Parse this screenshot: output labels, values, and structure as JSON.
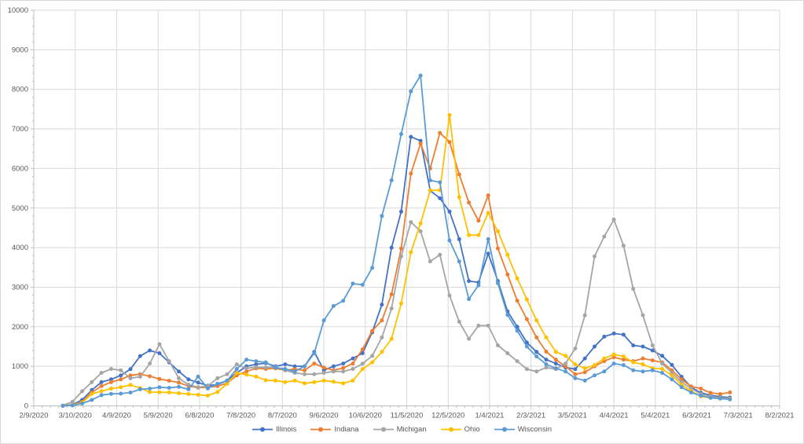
{
  "chart_data": {
    "type": "line",
    "title": "",
    "xlabel": "",
    "ylabel": "",
    "ylim": [
      0,
      10000
    ],
    "y_major_unit": 1000,
    "y_minor_per_major": 5,
    "x_minor_per_major": 5,
    "grid": "both",
    "legend_position": "bottom",
    "x_axis_origin": "2/9/2020",
    "x_axis_ticks": [
      "2/9/2020",
      "3/10/2020",
      "4/9/2020",
      "5/9/2020",
      "6/8/2020",
      "7/8/2020",
      "8/7/2020",
      "9/6/2020",
      "10/6/2020",
      "11/5/2020",
      "12/5/2020",
      "1/4/2021",
      "2/3/2021",
      "3/5/2021",
      "4/4/2021",
      "5/4/2021",
      "6/3/2021",
      "7/3/2021",
      "8/2/2021"
    ],
    "y_axis_ticks": [
      "0",
      "1000",
      "2000",
      "3000",
      "4000",
      "5000",
      "6000",
      "7000",
      "8000",
      "9000",
      "10000"
    ],
    "x": [
      "3/1/2020",
      "3/8/2020",
      "3/15/2020",
      "3/22/2020",
      "3/29/2020",
      "4/5/2020",
      "4/12/2020",
      "4/19/2020",
      "4/26/2020",
      "5/3/2020",
      "5/10/2020",
      "5/17/2020",
      "5/24/2020",
      "5/31/2020",
      "6/7/2020",
      "6/14/2020",
      "6/21/2020",
      "6/28/2020",
      "7/5/2020",
      "7/12/2020",
      "7/19/2020",
      "7/26/2020",
      "8/2/2020",
      "8/9/2020",
      "8/16/2020",
      "8/23/2020",
      "8/30/2020",
      "9/6/2020",
      "9/13/2020",
      "9/20/2020",
      "9/27/2020",
      "10/4/2020",
      "10/11/2020",
      "10/18/2020",
      "10/25/2020",
      "11/1/2020",
      "11/8/2020",
      "11/15/2020",
      "11/22/2020",
      "11/29/2020",
      "12/6/2020",
      "12/13/2020",
      "12/20/2020",
      "12/27/2020",
      "1/3/2021",
      "1/10/2021",
      "1/17/2021",
      "1/24/2021",
      "1/31/2021",
      "2/7/2021",
      "2/14/2021",
      "2/21/2021",
      "2/28/2021",
      "3/7/2021",
      "3/14/2021",
      "3/21/2021",
      "3/28/2021",
      "4/4/2021",
      "4/11/2021",
      "4/18/2021",
      "4/25/2021",
      "5/2/2021",
      "5/9/2021",
      "5/16/2021",
      "5/23/2021",
      "5/30/2021",
      "6/6/2021",
      "6/13/2021",
      "6/20/2021",
      "6/27/2021"
    ],
    "series": [
      {
        "name": "Illinois",
        "color": "#4472C4",
        "values": [
          5,
          30,
          150,
          400,
          600,
          670,
          770,
          930,
          1260,
          1400,
          1330,
          1100,
          870,
          670,
          590,
          510,
          540,
          640,
          835,
          1000,
          1050,
          1080,
          1000,
          1050,
          1000,
          1000,
          1365,
          900,
          1000,
          1070,
          1200,
          1330,
          1860,
          2560,
          4000,
          4910,
          6800,
          6700,
          5440,
          5250,
          4910,
          4215,
          3155,
          3120,
          3850,
          3155,
          2390,
          2000,
          1600,
          1365,
          1170,
          1070,
          970,
          930,
          1200,
          1500,
          1750,
          1830,
          1800,
          1530,
          1500,
          1400,
          1266,
          1034,
          736,
          471,
          330,
          270,
          230,
          210
        ]
      },
      {
        "name": "Indiana",
        "color": "#ED7D31",
        "values": [
          0,
          20,
          100,
          340,
          500,
          600,
          670,
          770,
          800,
          750,
          680,
          636,
          590,
          500,
          460,
          470,
          500,
          570,
          770,
          870,
          950,
          934,
          950,
          900,
          930,
          900,
          1070,
          970,
          900,
          960,
          1070,
          1430,
          1895,
          2160,
          2820,
          3980,
          5870,
          6630,
          6000,
          6900,
          6670,
          5850,
          5140,
          4680,
          5320,
          3980,
          3320,
          2660,
          2190,
          1730,
          1370,
          1170,
          1000,
          800,
          850,
          1000,
          1130,
          1230,
          1170,
          1130,
          1200,
          1150,
          1100,
          900,
          670,
          490,
          437,
          330,
          300,
          340
        ]
      },
      {
        "name": "Michigan",
        "color": "#A5A5A5",
        "values": [
          10,
          105,
          370,
          600,
          835,
          934,
          900,
          700,
          736,
          1070,
          1560,
          1130,
          700,
          537,
          471,
          503,
          700,
          800,
          1050,
          950,
          980,
          970,
          980,
          900,
          835,
          800,
          800,
          835,
          870,
          870,
          934,
          1067,
          1266,
          1730,
          2460,
          3780,
          4645,
          4413,
          3652,
          3817,
          2790,
          2127,
          1696,
          2028,
          2028,
          1530,
          1330,
          1130,
          930,
          870,
          970,
          930,
          1070,
          1450,
          2290,
          3780,
          4280,
          4710,
          4050,
          2960,
          2290,
          1530,
          1070,
          835,
          600,
          437,
          300,
          240,
          200,
          185
        ]
      },
      {
        "name": "Ohio",
        "color": "#FFC000",
        "values": [
          0,
          15,
          80,
          304,
          372,
          437,
          471,
          530,
          450,
          350,
          345,
          340,
          320,
          300,
          280,
          260,
          350,
          560,
          830,
          790,
          740,
          650,
          640,
          600,
          640,
          570,
          600,
          640,
          610,
          570,
          640,
          930,
          1100,
          1365,
          1696,
          2590,
          3883,
          4612,
          5450,
          5450,
          7350,
          5275,
          4315,
          4315,
          4877,
          4413,
          3817,
          3221,
          2690,
          2160,
          1730,
          1365,
          1266,
          1050,
          950,
          1030,
          1200,
          1300,
          1250,
          1100,
          1050,
          950,
          934,
          770,
          537,
          372,
          240,
          200,
          185,
          175
        ]
      },
      {
        "name": "Wisconsin",
        "color": "#5B9BD5",
        "values": [
          0,
          10,
          60,
          150,
          272,
          304,
          310,
          338,
          420,
          437,
          471,
          457,
          483,
          420,
          740,
          440,
          560,
          640,
          934,
          1170,
          1130,
          1100,
          968,
          934,
          870,
          1000,
          1330,
          2160,
          2525,
          2657,
          3090,
          3060,
          3490,
          4800,
          5700,
          6870,
          7950,
          8350,
          5700,
          5650,
          4180,
          3650,
          2700,
          3050,
          4215,
          3100,
          2300,
          1900,
          1500,
          1250,
          1050,
          950,
          870,
          700,
          640,
          770,
          870,
          1070,
          1030,
          900,
          870,
          900,
          835,
          670,
          471,
          338,
          258,
          205,
          185,
          165
        ]
      }
    ],
    "styles": {
      "gridline_color": "#D9D9D9",
      "axis_line_color": "#BFBFBF",
      "tick_color": "#BFBFBF",
      "label_color": "#595959",
      "background": "#FFFFFF"
    }
  },
  "legend": {
    "items": [
      {
        "label": "Illinois"
      },
      {
        "label": "Indiana"
      },
      {
        "label": "Michigan"
      },
      {
        "label": "Ohio"
      },
      {
        "label": "Wisconsin"
      }
    ]
  }
}
